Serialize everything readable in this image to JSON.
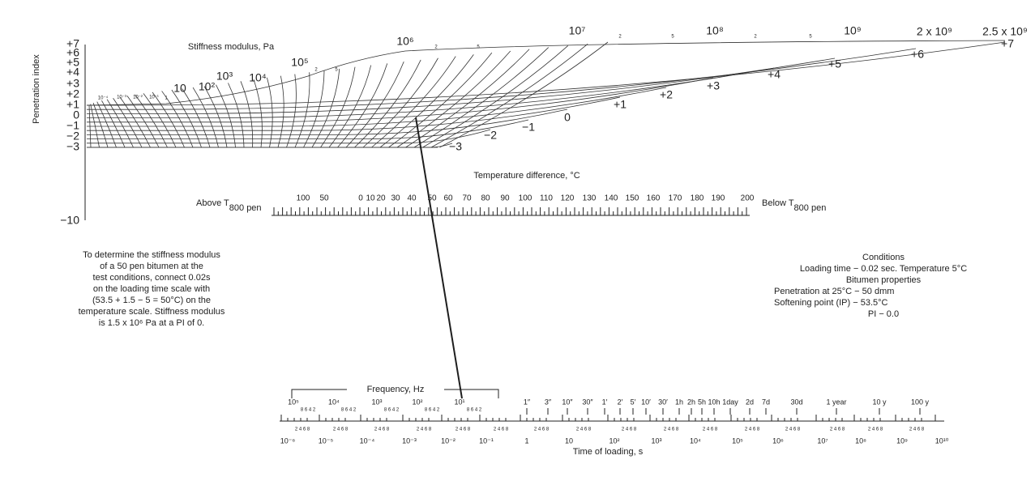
{
  "penetration_index": {
    "axis_label": "Penetration index",
    "ticks": [
      "+7",
      "+6",
      "+5",
      "+4",
      "+3",
      "+2",
      "+1",
      "0",
      "−1",
      "−2",
      "−3",
      "−10"
    ]
  },
  "stiffness": {
    "title": "Stiffness modulus, Pa",
    "labels": [
      "10⁻⁴",
      "10⁻³",
      "10⁻²",
      "10⁻¹",
      "1",
      "10",
      "10²",
      "10³",
      "10⁴",
      "10⁵",
      "10⁶",
      "10⁷",
      "10⁸",
      "10⁹",
      "2 x 10⁹",
      "2.5 x 10⁹"
    ],
    "minor_labels": [
      "2",
      "5"
    ],
    "pi_curve_labels": [
      "+7",
      "+6",
      "+5",
      "+4",
      "+3",
      "+2",
      "+1",
      "0",
      "−1",
      "−2",
      "−3"
    ]
  },
  "temperature": {
    "title": "Temperature difference, °C",
    "above": {
      "text": "Above T",
      "sub": "800 pen"
    },
    "below": {
      "text": "Below T",
      "sub": "800 pen"
    },
    "labels": [
      "100",
      "50",
      "0",
      "10",
      "20",
      "30",
      "40",
      "50",
      "60",
      "70",
      "80",
      "90",
      "100",
      "110",
      "120",
      "130",
      "140",
      "150",
      "160",
      "170",
      "180",
      "190",
      "200"
    ]
  },
  "note": {
    "lines": [
      "To determine the stiffness modulus",
      "of a 50 pen bitumen at the",
      "test conditions, connect 0.02s",
      "on the loading time scale with",
      "(53.5 + 1.5 − 5 = 50°C) on the",
      "temperature scale. Stiffness modulus",
      "is 1.5 x 10⁶ Pa at a PI of 0."
    ]
  },
  "conditions": {
    "lines": [
      "Conditions",
      "Loading time − 0.02 sec. Temperature 5°C",
      "Bitumen properties",
      "Penetration at 25°C − 50 dmm",
      "Softening point (IP) − 53.5°C",
      "PI − 0.0"
    ]
  },
  "loading": {
    "frequency_title": "Frequency, Hz",
    "frequency_labels": [
      "10⁵",
      "10⁴",
      "10³",
      "10²",
      "10¹"
    ],
    "frequency_minor": "8 6 4 2",
    "duration_labels": [
      "1″",
      "3″",
      "10″",
      "30″",
      "1′",
      "2′",
      "5′",
      "10′",
      "30′",
      "1h",
      "2h",
      "5h",
      "10h",
      "1day",
      "2d",
      "7d",
      "30d",
      "1 year",
      "10 y",
      "100 y"
    ],
    "time_minor": "2 4 6 8",
    "time_labels": [
      "10⁻⁶",
      "10⁻⁵",
      "10⁻⁴",
      "10⁻³",
      "10⁻²",
      "10⁻¹",
      "1",
      "10",
      "10²",
      "10³",
      "10⁴",
      "10⁵",
      "10⁶",
      "10⁷",
      "10⁸",
      "10⁹",
      "10¹⁰"
    ],
    "time_title": "Time of loading, s"
  }
}
